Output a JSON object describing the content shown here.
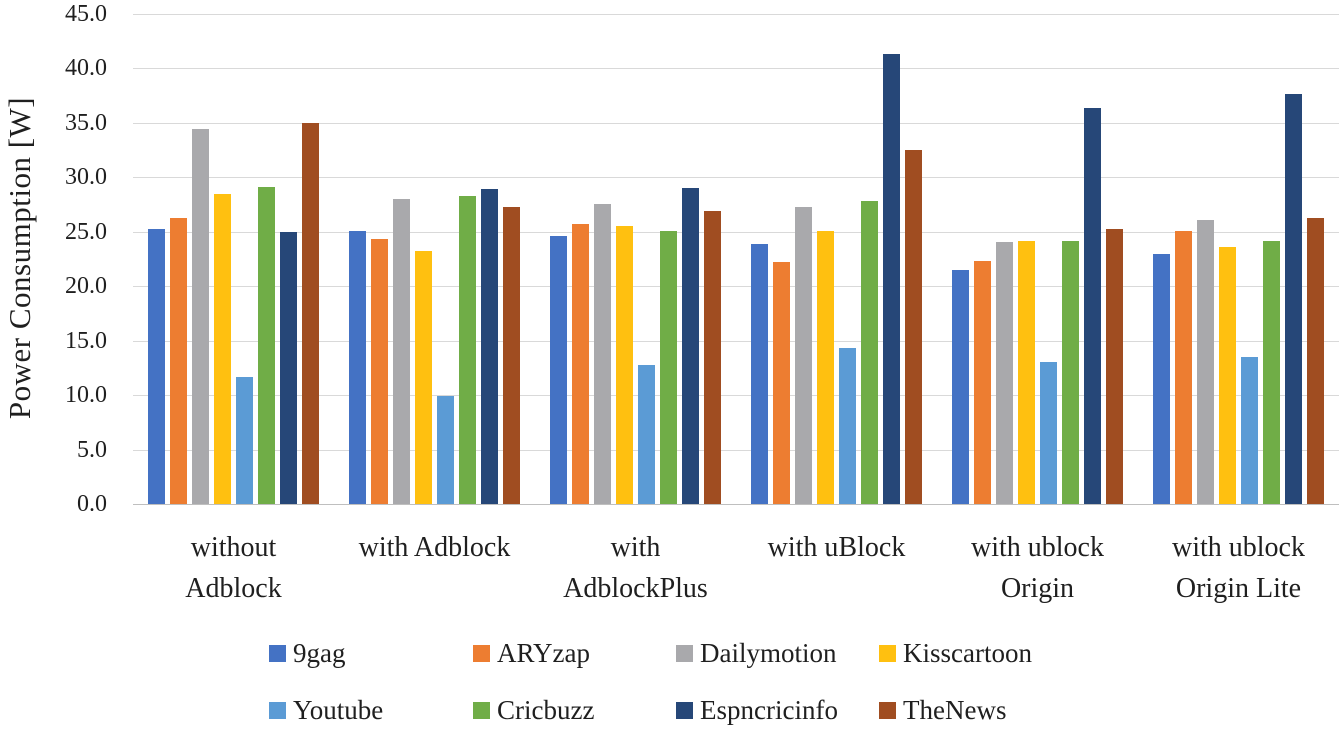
{
  "chart_data": {
    "type": "bar",
    "title": "",
    "xlabel": "",
    "ylabel": "Power Consumption [W]",
    "ylim": [
      0,
      45
    ],
    "ytick_step": 5,
    "yticks": [
      "45.0",
      "40.0",
      "35.0",
      "30.0",
      "25.0",
      "20.0",
      "15.0",
      "10.0",
      "5.0",
      "0.0"
    ],
    "grid": true,
    "legend_position": "bottom",
    "categories": [
      "without\nAdblock",
      "with Adblock",
      "with\nAdblockPlus",
      "with uBlock",
      "with ublock\nOrigin",
      "with ublock\nOrigin Lite"
    ],
    "series": [
      {
        "name": "9gag",
        "color": "#4472C4",
        "values": [
          25.3,
          25.1,
          24.6,
          23.9,
          21.5,
          23.0
        ]
      },
      {
        "name": "ARYzap",
        "color": "#ED7D31",
        "values": [
          26.3,
          24.3,
          25.7,
          22.2,
          22.3,
          25.1
        ]
      },
      {
        "name": "Dailymotion",
        "color": "#A9A9AC",
        "values": [
          34.4,
          28.0,
          27.6,
          27.3,
          24.1,
          26.1
        ]
      },
      {
        "name": "Kisscartoon",
        "color": "#FFC010",
        "values": [
          28.5,
          23.2,
          25.5,
          25.1,
          24.2,
          23.6
        ]
      },
      {
        "name": "Youtube",
        "color": "#5B9BD5",
        "values": [
          11.7,
          9.9,
          12.8,
          14.3,
          13.0,
          13.5
        ]
      },
      {
        "name": "Cricbuzz",
        "color": "#70AD47",
        "values": [
          29.1,
          28.3,
          25.1,
          27.8,
          24.2,
          24.2
        ]
      },
      {
        "name": "Espncricinfo",
        "color": "#264778",
        "values": [
          25.0,
          28.9,
          29.0,
          41.3,
          36.4,
          37.7
        ]
      },
      {
        "name": "TheNews",
        "color": "#A04D21",
        "values": [
          35.0,
          27.3,
          26.9,
          32.5,
          25.3,
          26.3
        ]
      }
    ],
    "legend_rows": [
      [
        "9gag",
        "ARYzap",
        "Dailymotion",
        "Kisscartoon"
      ],
      [
        "Youtube",
        "Cricbuzz",
        "Espncricinfo",
        "TheNews"
      ]
    ],
    "colors": {
      "gridline": "#D9D9D9",
      "axis_line": "#BFBFBF",
      "text": "#1F1F1F"
    }
  }
}
